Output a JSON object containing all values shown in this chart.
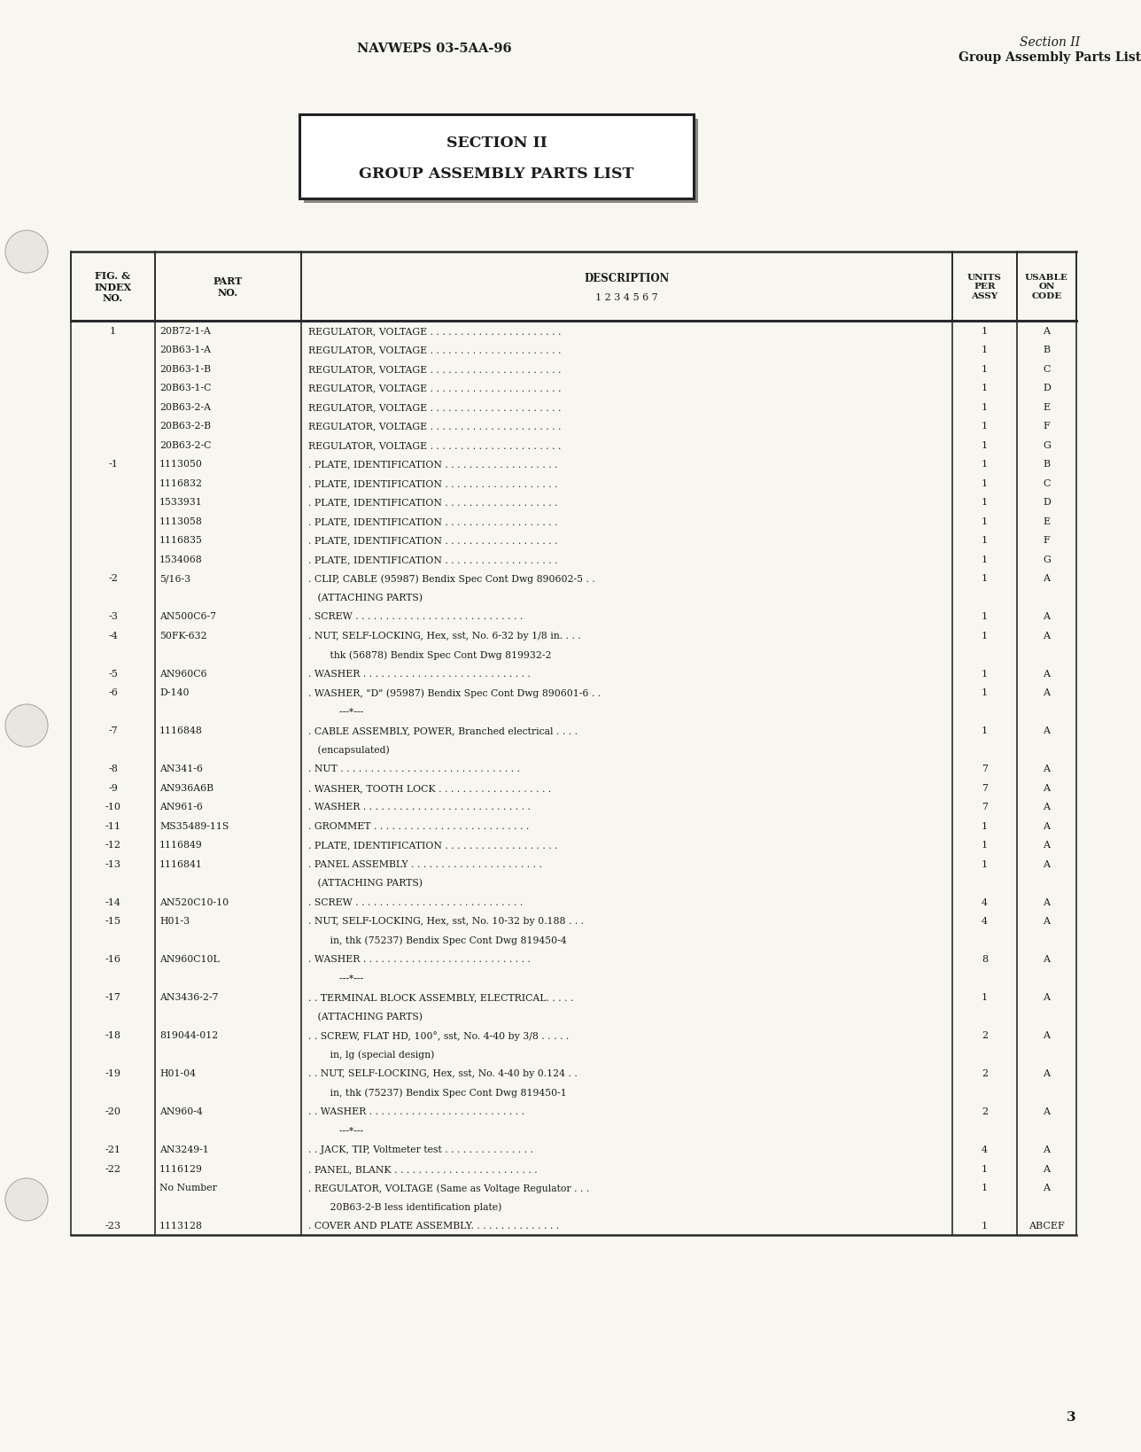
{
  "page_bg": "#f7f6f0",
  "header_left": "NAVWEPS 03-5AA-96",
  "header_right_line1": "Section II",
  "header_right_line2": "Group Assembly Parts List",
  "title_box_line1": "SECTION II",
  "title_box_line2": "GROUP ASSEMBLY PARTS LIST",
  "rows": [
    [
      "1",
      "20B72-1-A",
      "REGULATOR, VOLTAGE . . . . . . . . . . . . . . . . . . . . . .",
      "1",
      "A"
    ],
    [
      "",
      "20B63-1-A",
      "REGULATOR, VOLTAGE . . . . . . . . . . . . . . . . . . . . . .",
      "1",
      "B"
    ],
    [
      "",
      "20B63-1-B",
      "REGULATOR, VOLTAGE . . . . . . . . . . . . . . . . . . . . . .",
      "1",
      "C"
    ],
    [
      "",
      "20B63-1-C",
      "REGULATOR, VOLTAGE . . . . . . . . . . . . . . . . . . . . . .",
      "1",
      "D"
    ],
    [
      "",
      "20B63-2-A",
      "REGULATOR, VOLTAGE . . . . . . . . . . . . . . . . . . . . . .",
      "1",
      "E"
    ],
    [
      "",
      "20B63-2-B",
      "REGULATOR, VOLTAGE . . . . . . . . . . . . . . . . . . . . . .",
      "1",
      "F"
    ],
    [
      "",
      "20B63-2-C",
      "REGULATOR, VOLTAGE . . . . . . . . . . . . . . . . . . . . . .",
      "1",
      "G"
    ],
    [
      "-1",
      "1113050",
      ". PLATE, IDENTIFICATION . . . . . . . . . . . . . . . . . . .",
      "1",
      "B"
    ],
    [
      "",
      "1116832",
      ". PLATE, IDENTIFICATION . . . . . . . . . . . . . . . . . . .",
      "1",
      "C"
    ],
    [
      "",
      "1533931",
      ". PLATE, IDENTIFICATION . . . . . . . . . . . . . . . . . . .",
      "1",
      "D"
    ],
    [
      "",
      "1113058",
      ". PLATE, IDENTIFICATION . . . . . . . . . . . . . . . . . . .",
      "1",
      "E"
    ],
    [
      "",
      "1116835",
      ". PLATE, IDENTIFICATION . . . . . . . . . . . . . . . . . . .",
      "1",
      "F"
    ],
    [
      "",
      "1534068",
      ". PLATE, IDENTIFICATION . . . . . . . . . . . . . . . . . . .",
      "1",
      "G"
    ],
    [
      "-2",
      "5/16-3",
      ". CLIP, CABLE (95987) Bendix Spec Cont Dwg 890602-5 . .",
      "1",
      "A"
    ],
    [
      "",
      "",
      "   (ATTACHING PARTS)",
      "",
      ""
    ],
    [
      "-3",
      "AN500C6-7",
      ". SCREW . . . . . . . . . . . . . . . . . . . . . . . . . . . .",
      "1",
      "A"
    ],
    [
      "-4",
      "50FK-632",
      ". NUT, SELF-LOCKING, Hex, sst, No. 6-32 by 1/8 in. . . .",
      "1",
      "A"
    ],
    [
      "",
      "",
      "       thk (56878) Bendix Spec Cont Dwg 819932-2",
      "",
      ""
    ],
    [
      "-5",
      "AN960C6",
      ". WASHER . . . . . . . . . . . . . . . . . . . . . . . . . . . .",
      "1",
      "A"
    ],
    [
      "-6",
      "D-140",
      ". WASHER, \"D\" (95987) Bendix Spec Cont Dwg 890601-6 . .",
      "1",
      "A"
    ],
    [
      "",
      "",
      "          ---*---",
      "",
      ""
    ],
    [
      "-7",
      "1116848",
      ". CABLE ASSEMBLY, POWER, Branched electrical . . . .",
      "1",
      "A"
    ],
    [
      "",
      "",
      "   (encapsulated)",
      "",
      ""
    ],
    [
      "-8",
      "AN341-6",
      ". NUT . . . . . . . . . . . . . . . . . . . . . . . . . . . . . .",
      "7",
      "A"
    ],
    [
      "-9",
      "AN936A6B",
      ". WASHER, TOOTH LOCK . . . . . . . . . . . . . . . . . . .",
      "7",
      "A"
    ],
    [
      "-10",
      "AN961-6",
      ". WASHER . . . . . . . . . . . . . . . . . . . . . . . . . . . .",
      "7",
      "A"
    ],
    [
      "-11",
      "MS35489-11S",
      ". GROMMET . . . . . . . . . . . . . . . . . . . . . . . . . .",
      "1",
      "A"
    ],
    [
      "-12",
      "1116849",
      ". PLATE, IDENTIFICATION . . . . . . . . . . . . . . . . . . .",
      "1",
      "A"
    ],
    [
      "-13",
      "1116841",
      ". PANEL ASSEMBLY . . . . . . . . . . . . . . . . . . . . . .",
      "1",
      "A"
    ],
    [
      "",
      "",
      "   (ATTACHING PARTS)",
      "",
      ""
    ],
    [
      "-14",
      "AN520C10-10",
      ". SCREW . . . . . . . . . . . . . . . . . . . . . . . . . . . .",
      "4",
      "A"
    ],
    [
      "-15",
      "H01-3",
      ". NUT, SELF-LOCKING, Hex, sst, No. 10-32 by 0.188 . . .",
      "4",
      "A"
    ],
    [
      "",
      "",
      "       in, thk (75237) Bendix Spec Cont Dwg 819450-4",
      "",
      ""
    ],
    [
      "-16",
      "AN960C10L",
      ". WASHER . . . . . . . . . . . . . . . . . . . . . . . . . . . .",
      "8",
      "A"
    ],
    [
      "",
      "",
      "          ---*---",
      "",
      ""
    ],
    [
      "-17",
      "AN3436-2-7",
      ". . TERMINAL BLOCK ASSEMBLY, ELECTRICAL. . . . .",
      "1",
      "A"
    ],
    [
      "",
      "",
      "   (ATTACHING PARTS)",
      "",
      ""
    ],
    [
      "-18",
      "819044-012",
      ". . SCREW, FLAT HD, 100°, sst, No. 4-40 by 3/8 . . . . .",
      "2",
      "A"
    ],
    [
      "",
      "",
      "       in, lg (special design)",
      "",
      ""
    ],
    [
      "-19",
      "H01-04",
      ". . NUT, SELF-LOCKING, Hex, sst, No. 4-40 by 0.124 . .",
      "2",
      "A"
    ],
    [
      "",
      "",
      "       in, thk (75237) Bendix Spec Cont Dwg 819450-1",
      "",
      ""
    ],
    [
      "-20",
      "AN960-4",
      ". . WASHER . . . . . . . . . . . . . . . . . . . . . . . . . .",
      "2",
      "A"
    ],
    [
      "",
      "",
      "          ---*---",
      "",
      ""
    ],
    [
      "-21",
      "AN3249-1",
      ". . JACK, TIP, Voltmeter test . . . . . . . . . . . . . . .",
      "4",
      "A"
    ],
    [
      "-22",
      "1116129",
      ". PANEL, BLANK . . . . . . . . . . . . . . . . . . . . . . . .",
      "1",
      "A"
    ],
    [
      "",
      "No Number",
      ". REGULATOR, VOLTAGE (Same as Voltage Regulator . . .",
      "1",
      "A"
    ],
    [
      "",
      "",
      "       20B63-2-B less identification plate)",
      "",
      ""
    ],
    [
      "-23",
      "1113128",
      ". COVER AND PLATE ASSEMBLY. . . . . . . . . . . . . . .",
      "1",
      "ABCEF"
    ]
  ],
  "page_number": "3",
  "font_color": "#1c1c1c",
  "table_border_color": "#2a2a2a"
}
